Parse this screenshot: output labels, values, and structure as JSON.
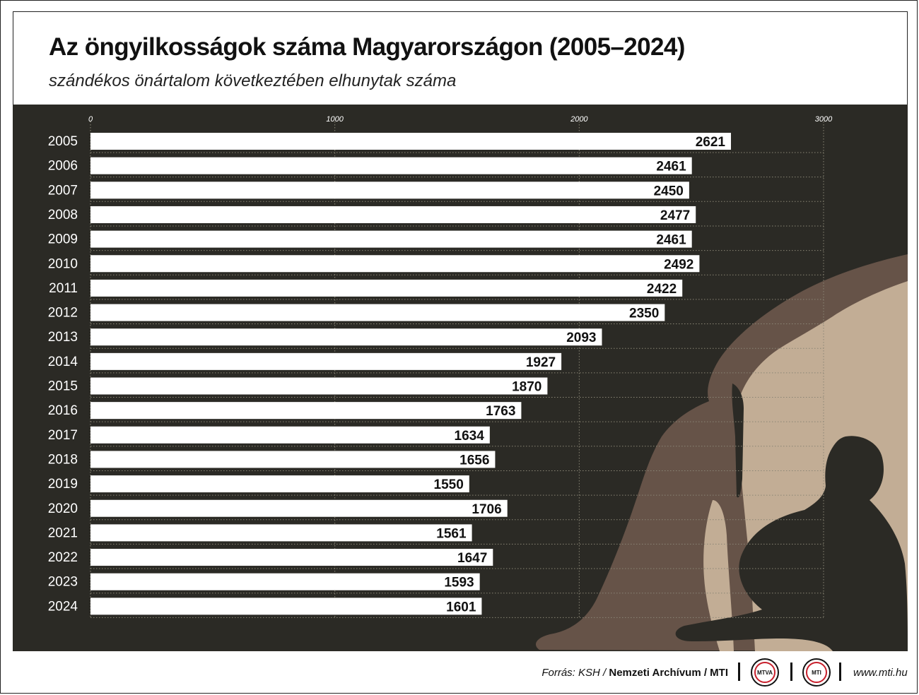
{
  "header": {
    "title": "Az öngyilkosságok száma Magyarországon (2005–2024)",
    "subtitle": "szándékos önártalom következtében elhunytak száma"
  },
  "footer": {
    "source_label": "Forrás: KSH /",
    "source_org": "Nemzeti Archívum / MTI",
    "logo_1": "MTVA",
    "logo_2": "MTI",
    "url": "www.mti.hu"
  },
  "colors": {
    "panel": "#2b2a25",
    "bar": "#ffffff",
    "silhouette_light": "#c2ad95",
    "silhouette_mid": "#665348",
    "silhouette_dark": "#2b2a25"
  },
  "chart_data": {
    "type": "bar",
    "orientation": "horizontal",
    "title": "Az öngyilkosságok száma Magyarországon (2005–2024)",
    "subtitle": "szándékos önártalom következtében elhunytak száma",
    "categories": [
      "2005",
      "2006",
      "2007",
      "2008",
      "2009",
      "2010",
      "2011",
      "2012",
      "2013",
      "2014",
      "2015",
      "2016",
      "2017",
      "2018",
      "2019",
      "2020",
      "2021",
      "2022",
      "2023",
      "2024"
    ],
    "values": [
      2621,
      2461,
      2450,
      2477,
      2461,
      2492,
      2422,
      2350,
      2093,
      1927,
      1870,
      1763,
      1634,
      1656,
      1550,
      1706,
      1561,
      1647,
      1593,
      1601
    ],
    "xticks": [
      0,
      1000,
      2000,
      3000
    ],
    "xlim": [
      0,
      3000
    ],
    "grid": true,
    "data_labels": true,
    "axis_position": "top"
  }
}
